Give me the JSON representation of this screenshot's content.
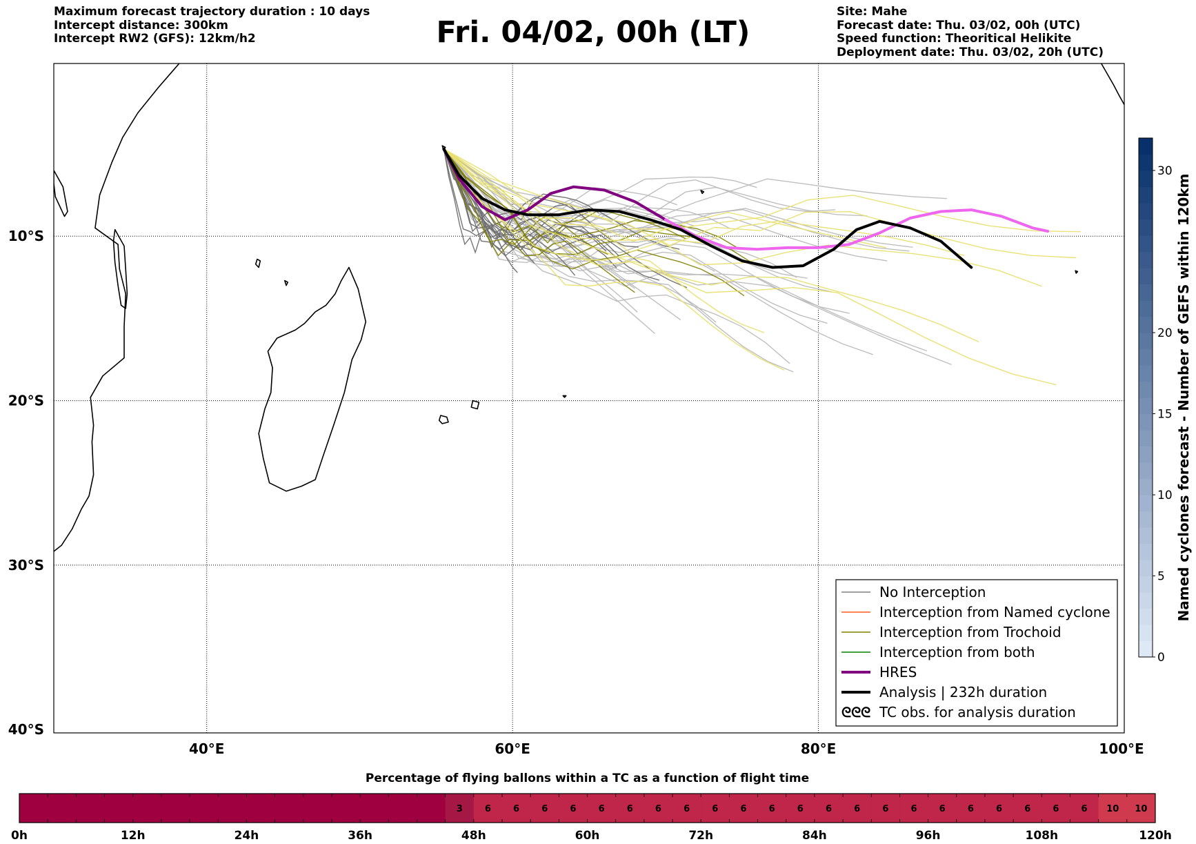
{
  "header_left": [
    "Maximum forecast trajectory duration : 10 days",
    "Intercept distance: 300km",
    "Intercept RW2 (GFS):  12km/h2"
  ],
  "title": "Fri. 04/02, 00h (LT)",
  "header_right": [
    "Site: Mahe",
    "Forecast date: Thu. 03/02, 00h (UTC)",
    "Speed function: Theoritical Helikite",
    "Deployment date: Thu. 03/02, 20h (UTC)"
  ],
  "map": {
    "x_ticks": [
      {
        "lon": 40,
        "label": "40°E"
      },
      {
        "lon": 60,
        "label": "60°E"
      },
      {
        "lon": 80,
        "label": "80°E"
      },
      {
        "lon": 100,
        "label": "100°E"
      }
    ],
    "y_ticks": [
      {
        "lat": -10,
        "label": "10°S"
      },
      {
        "lat": -20,
        "label": "20°S"
      },
      {
        "lat": -30,
        "label": "30°S"
      },
      {
        "lat": -40,
        "label": "40°S"
      }
    ],
    "lon_range": [
      30,
      100
    ],
    "lat_range": [
      -40.2,
      0.5
    ],
    "land_color": "#000000"
  },
  "legend": {
    "position": "lower-right",
    "items": [
      {
        "label": "No Interception",
        "color": "#808080",
        "width": 1.5,
        "kind": "line"
      },
      {
        "label": "Interception from Named cyclone",
        "color": "#ff5a1a",
        "width": 1.5,
        "kind": "line"
      },
      {
        "label": "Interception from Trochoid",
        "color": "#808000",
        "width": 1.5,
        "kind": "line"
      },
      {
        "label": "Interception from both",
        "color": "#008000",
        "width": 1.5,
        "kind": "line"
      },
      {
        "label": "HRES",
        "color": "#800080",
        "width": 4,
        "kind": "line"
      },
      {
        "label": "Analysis | 232h duration",
        "color": "#000000",
        "width": 4,
        "kind": "line"
      },
      {
        "label": "TC obs. for analysis duration",
        "color": "#000000",
        "width": 0,
        "kind": "symbol",
        "symbol": "ᘓᘓᘓ"
      }
    ]
  },
  "colorbar": {
    "label": "Named cyclones forecast - Number of GEFS within 120km",
    "ticks": [
      0,
      5,
      10,
      15,
      20,
      30
    ],
    "range": [
      0,
      32
    ],
    "color_low": "#dfe9f6",
    "color_high": "#08306b"
  },
  "bottom_bar": {
    "title": "Percentage of flying ballons within a TC as a function of flight time",
    "tick_labels": [
      "0h",
      "12h",
      "24h",
      "36h",
      "48h",
      "60h",
      "72h",
      "84h",
      "96h",
      "108h",
      "120h"
    ]
  },
  "chart_data": [
    {
      "type": "line",
      "title": "Fri. 04/02, 00h (LT)",
      "xlabel": "",
      "ylabel": "",
      "xlim": [
        30,
        100
      ],
      "ylim": [
        -40.2,
        0.5
      ],
      "grid": true,
      "series": [
        {
          "name": "HRES",
          "color": "#800080",
          "x": [
            55.5,
            56.5,
            58,
            59.5,
            61,
            62.5,
            64,
            66,
            68,
            70
          ],
          "y": [
            -4.7,
            -6.5,
            -8.2,
            -9.0,
            -8.4,
            -7.4,
            -7.0,
            -7.2,
            -7.9,
            -9.0
          ]
        },
        {
          "color": "#ee66ee",
          "x": [
            70,
            72,
            74,
            76,
            78,
            80,
            82,
            84,
            86,
            88,
            90,
            92,
            94,
            95
          ],
          "y": [
            -9.0,
            -10.0,
            -10.7,
            -10.8,
            -10.7,
            -10.7,
            -10.5,
            -9.8,
            -8.9,
            -8.5,
            -8.4,
            -8.8,
            -9.5,
            -9.7
          ]
        },
        {
          "name": "Analysis | 232h duration",
          "color": "#000000",
          "x": [
            55.5,
            56.5,
            58,
            59.5,
            61,
            63,
            65,
            67,
            69,
            71,
            73,
            75,
            77,
            79,
            81,
            82.5,
            84,
            86,
            88,
            90
          ],
          "y": [
            -4.7,
            -6.3,
            -7.7,
            -8.4,
            -8.7,
            -8.7,
            -8.4,
            -8.5,
            -9.0,
            -9.6,
            -10.6,
            -11.5,
            -11.9,
            -11.8,
            -10.8,
            -9.6,
            -9.1,
            -9.5,
            -10.3,
            -11.9
          ]
        }
      ],
      "ensemble_series_count": {
        "grey": 28,
        "olive": 6,
        "yellow": 9
      }
    },
    {
      "type": "bar",
      "title": "Percentage of flying ballons within a TC as a function of flight time",
      "xlabel": "",
      "ylabel": "",
      "x_range_h": [
        0,
        120
      ],
      "segments": [
        {
          "start": 0,
          "end": 45,
          "value": 0,
          "color": "#9e0040"
        },
        {
          "start": 45,
          "end": 48,
          "value": 3,
          "color": "#a51846"
        },
        {
          "start": 48,
          "end": 51,
          "value": 6,
          "color": "#c0254a"
        },
        {
          "start": 51,
          "end": 54,
          "value": 6,
          "color": "#c0254a"
        },
        {
          "start": 54,
          "end": 57,
          "value": 6,
          "color": "#c0254a"
        },
        {
          "start": 57,
          "end": 60,
          "value": 6,
          "color": "#c0254a"
        },
        {
          "start": 60,
          "end": 63,
          "value": 6,
          "color": "#c0254a"
        },
        {
          "start": 63,
          "end": 66,
          "value": 6,
          "color": "#c0254a"
        },
        {
          "start": 66,
          "end": 69,
          "value": 6,
          "color": "#c0254a"
        },
        {
          "start": 69,
          "end": 72,
          "value": 6,
          "color": "#c0254a"
        },
        {
          "start": 72,
          "end": 75,
          "value": 6,
          "color": "#c0254a"
        },
        {
          "start": 75,
          "end": 78,
          "value": 6,
          "color": "#c0254a"
        },
        {
          "start": 78,
          "end": 81,
          "value": 6,
          "color": "#c0254a"
        },
        {
          "start": 81,
          "end": 84,
          "value": 6,
          "color": "#c0254a"
        },
        {
          "start": 84,
          "end": 87,
          "value": 6,
          "color": "#c0254a"
        },
        {
          "start": 87,
          "end": 90,
          "value": 6,
          "color": "#c0254a"
        },
        {
          "start": 90,
          "end": 93,
          "value": 6,
          "color": "#c0254a"
        },
        {
          "start": 93,
          "end": 96,
          "value": 6,
          "color": "#c0254a"
        },
        {
          "start": 96,
          "end": 99,
          "value": 6,
          "color": "#c0254a"
        },
        {
          "start": 99,
          "end": 102,
          "value": 6,
          "color": "#c0254a"
        },
        {
          "start": 102,
          "end": 105,
          "value": 6,
          "color": "#c0254a"
        },
        {
          "start": 105,
          "end": 108,
          "value": 6,
          "color": "#c0254a"
        },
        {
          "start": 108,
          "end": 111,
          "value": 6,
          "color": "#c0254a"
        },
        {
          "start": 111,
          "end": 114,
          "value": 6,
          "color": "#c0254a"
        },
        {
          "start": 114,
          "end": 117,
          "value": 10,
          "color": "#d03a4e"
        },
        {
          "start": 117,
          "end": 120,
          "value": 10,
          "color": "#d03a4e"
        }
      ]
    }
  ]
}
